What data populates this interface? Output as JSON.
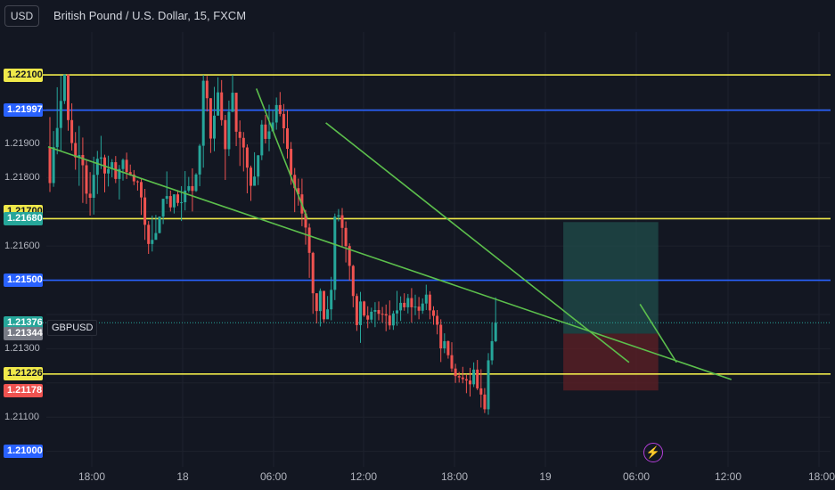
{
  "header": {
    "currency": "USD",
    "title": "British Pound / U.S. Dollar, 15, FXCM"
  },
  "symbol": "GBPUSD",
  "colors": {
    "bg": "#131722",
    "up": "#26a69a",
    "down": "#ef5350",
    "yellow": "#f0e94a",
    "blue": "#2962ff",
    "trend": "#5cbf4c",
    "profit_zone": "#1f4a48",
    "loss_zone": "#5a1f26"
  },
  "icons": {
    "event": "lightning-icon"
  },
  "chart_data": {
    "type": "candlestick",
    "title": "British Pound / U.S. Dollar, 15, FXCM",
    "ylim": [
      1.2096,
      1.2222
    ],
    "y_ticks": [
      "1.21900",
      "1.21800",
      "1.21600",
      "1.21300",
      "1.21100"
    ],
    "x_ticks": [
      "18:00",
      "18",
      "06:00",
      "12:00",
      "18:00",
      "19",
      "06:00",
      "12:00",
      "18:00"
    ],
    "price_tags": [
      {
        "text": "1.22100",
        "value": 1.221,
        "kind": "yellow"
      },
      {
        "text": "1.21997",
        "value": 1.21997,
        "kind": "blue"
      },
      {
        "text": "1.21700",
        "value": 1.217,
        "kind": "yellow"
      },
      {
        "text": "1.21680",
        "value": 1.2168,
        "kind": "green"
      },
      {
        "text": "1.21500",
        "value": 1.215,
        "kind": "blue"
      },
      {
        "text": "1.21376",
        "value": 1.21376,
        "kind": "green"
      },
      {
        "text": "1.21344",
        "value": 1.21344,
        "kind": "gray"
      },
      {
        "text": "1.21226",
        "value": 1.21226,
        "kind": "yellow"
      },
      {
        "text": "1.21178",
        "value": 1.21178,
        "kind": "red"
      },
      {
        "text": "1.21000",
        "value": 1.21,
        "kind": "blue"
      }
    ],
    "horizontal_levels": [
      {
        "value": 1.221,
        "color": "yellow"
      },
      {
        "value": 1.21997,
        "color": "blue"
      },
      {
        "value": 1.2168,
        "color": "yellow"
      },
      {
        "value": 1.215,
        "color": "blue"
      },
      {
        "value": 1.21226,
        "color": "yellow"
      }
    ],
    "current_price": 1.21376,
    "trend_lines": [
      {
        "t0": 0,
        "p0": 1.2189,
        "t1": 187,
        "p1": 1.2121
      },
      {
        "t0": 57,
        "p0": 1.2206,
        "t1": 71,
        "p1": 1.2168
      },
      {
        "t0": 76,
        "p0": 1.2196,
        "t1": 159,
        "p1": 1.2126
      },
      {
        "t0": 162,
        "p0": 1.2143,
        "t1": 172,
        "p1": 1.2126
      }
    ],
    "position": {
      "t0": 141,
      "t1": 167,
      "target": 1.2167,
      "entry": 1.21344,
      "stop": 1.21178
    },
    "candles": [
      [
        1.21887,
        1.21784,
        1.21977,
        1.21758
      ],
      [
        1.21784,
        1.21889,
        1.21936,
        1.21773
      ],
      [
        1.21889,
        1.21945,
        1.22064,
        1.21868
      ],
      [
        1.21945,
        1.22024,
        1.22098,
        1.21878
      ],
      [
        1.22024,
        1.22101,
        1.22101,
        1.22015
      ],
      [
        1.22101,
        1.21968,
        1.22101,
        1.21937
      ],
      [
        1.21968,
        1.21901,
        1.22017,
        1.21879
      ],
      [
        1.21901,
        1.21859,
        1.21933,
        1.21823
      ],
      [
        1.21859,
        1.21866,
        1.21951,
        1.21776
      ],
      [
        1.21866,
        1.21836,
        1.21917,
        1.21726
      ],
      [
        1.21836,
        1.21753,
        1.21853,
        1.21723
      ],
      [
        1.21753,
        1.21741,
        1.21816,
        1.21689
      ],
      [
        1.21741,
        1.21808,
        1.21861,
        1.21692
      ],
      [
        1.21808,
        1.21855,
        1.21878,
        1.21752
      ],
      [
        1.21855,
        1.21859,
        1.21922,
        1.21825
      ],
      [
        1.21859,
        1.21812,
        1.21867,
        1.21757
      ],
      [
        1.21812,
        1.21825,
        1.21864,
        1.21774
      ],
      [
        1.21825,
        1.21845,
        1.21854,
        1.21801
      ],
      [
        1.21845,
        1.21796,
        1.21863,
        1.21784
      ],
      [
        1.21796,
        1.21825,
        1.21837,
        1.21736
      ],
      [
        1.21825,
        1.21852,
        1.21856,
        1.21791
      ],
      [
        1.21852,
        1.21816,
        1.21873,
        1.21796
      ],
      [
        1.21816,
        1.21809,
        1.21838,
        1.21805
      ],
      [
        1.21809,
        1.21789,
        1.21822,
        1.21778
      ],
      [
        1.21789,
        1.21787,
        1.21792,
        1.21762
      ],
      [
        1.21787,
        1.21742,
        1.21797,
        1.21691
      ],
      [
        1.21742,
        1.21662,
        1.21767,
        1.21618
      ],
      [
        1.21662,
        1.21606,
        1.21673,
        1.21577
      ],
      [
        1.21606,
        1.21618,
        1.21689,
        1.21584
      ],
      [
        1.21618,
        1.21638,
        1.21691,
        1.21637
      ],
      [
        1.21638,
        1.21686,
        1.21686,
        1.21637
      ],
      [
        1.21686,
        1.21738,
        1.21738,
        1.21664
      ],
      [
        1.21738,
        1.21746,
        1.21818,
        1.21723
      ],
      [
        1.21746,
        1.21713,
        1.21762,
        1.21701
      ],
      [
        1.21713,
        1.21751,
        1.21751,
        1.21695
      ],
      [
        1.21751,
        1.21726,
        1.21763,
        1.21717
      ],
      [
        1.21726,
        1.21728,
        1.21775,
        1.21673
      ],
      [
        1.21728,
        1.21762,
        1.21819,
        1.21704
      ],
      [
        1.21762,
        1.21775,
        1.21802,
        1.21756
      ],
      [
        1.21775,
        1.21761,
        1.21827,
        1.21701
      ],
      [
        1.21761,
        1.21809,
        1.21813,
        1.21758
      ],
      [
        1.21809,
        1.21893,
        1.21898,
        1.21775
      ],
      [
        1.21893,
        1.22083,
        1.221,
        1.21829
      ],
      [
        1.22083,
        1.22032,
        1.22097,
        1.21993
      ],
      [
        1.22032,
        1.21914,
        1.22032,
        1.21872
      ],
      [
        1.21914,
        1.21981,
        1.22065,
        1.21877
      ],
      [
        1.21981,
        1.22049,
        1.22093,
        1.21982
      ],
      [
        1.22049,
        1.21968,
        1.22085,
        1.21952
      ],
      [
        1.21968,
        1.21883,
        1.21983,
        1.21793
      ],
      [
        1.21883,
        1.21992,
        1.22025,
        1.21863
      ],
      [
        1.21992,
        1.22048,
        1.221,
        1.21993
      ],
      [
        1.22048,
        1.21934,
        1.22048,
        1.21892
      ],
      [
        1.21934,
        1.21916,
        1.21967,
        1.21834
      ],
      [
        1.21916,
        1.21888,
        1.21933,
        1.21818
      ],
      [
        1.21888,
        1.21829,
        1.21897,
        1.21754
      ],
      [
        1.21829,
        1.21776,
        1.21835,
        1.21732
      ],
      [
        1.21776,
        1.21803,
        1.21874,
        1.21788
      ],
      [
        1.21803,
        1.21865,
        1.21866,
        1.21778
      ],
      [
        1.21865,
        1.21955,
        1.21968,
        1.21851
      ],
      [
        1.21955,
        1.21913,
        1.21983,
        1.219
      ],
      [
        1.21913,
        1.21935,
        1.22013,
        1.21877
      ],
      [
        1.21935,
        1.21961,
        1.21997,
        1.21942
      ],
      [
        1.21961,
        1.22012,
        1.22034,
        1.2194
      ],
      [
        1.22012,
        1.21986,
        1.2205,
        1.21979
      ],
      [
        1.21986,
        1.21944,
        1.22015,
        1.219
      ],
      [
        1.21944,
        1.21884,
        1.21996,
        1.21856
      ],
      [
        1.21884,
        1.21808,
        1.21904,
        1.21779
      ],
      [
        1.21808,
        1.21769,
        1.21828,
        1.21699
      ],
      [
        1.21769,
        1.21751,
        1.21797,
        1.21718
      ],
      [
        1.21751,
        1.21695,
        1.21797,
        1.21658
      ],
      [
        1.21695,
        1.21654,
        1.21706,
        1.21604
      ],
      [
        1.21654,
        1.2158,
        1.21666,
        1.21507
      ],
      [
        1.2158,
        1.21462,
        1.21583,
        1.21402
      ],
      [
        1.21462,
        1.2141,
        1.21462,
        1.21374
      ],
      [
        1.2141,
        1.21469,
        1.21476,
        1.21365
      ],
      [
        1.21469,
        1.21386,
        1.21469,
        1.21376
      ],
      [
        1.21386,
        1.21415,
        1.21454,
        1.21389
      ],
      [
        1.21415,
        1.21472,
        1.2151,
        1.21383
      ],
      [
        1.21472,
        1.21686,
        1.21695,
        1.21442
      ],
      [
        1.21686,
        1.2169,
        1.21708,
        1.21672
      ],
      [
        1.2169,
        1.21653,
        1.21711,
        1.21596
      ],
      [
        1.21653,
        1.216,
        1.21672,
        1.21552
      ],
      [
        1.216,
        1.21542,
        1.21608,
        1.21499
      ],
      [
        1.21542,
        1.21454,
        1.21545,
        1.21421
      ],
      [
        1.21454,
        1.21369,
        1.21461,
        1.21352
      ],
      [
        1.21369,
        1.21438,
        1.21466,
        1.21317
      ],
      [
        1.21438,
        1.21397,
        1.2144,
        1.21393
      ],
      [
        1.21397,
        1.21385,
        1.21424,
        1.2136
      ],
      [
        1.21385,
        1.21408,
        1.2142,
        1.21376
      ],
      [
        1.21408,
        1.21413,
        1.21436,
        1.21363
      ],
      [
        1.21413,
        1.21402,
        1.21438,
        1.21383
      ],
      [
        1.21402,
        1.21401,
        1.21422,
        1.21376
      ],
      [
        1.21401,
        1.21397,
        1.21429,
        1.21351
      ],
      [
        1.21397,
        1.21368,
        1.21441,
        1.21356
      ],
      [
        1.21368,
        1.21403,
        1.21411,
        1.21355
      ],
      [
        1.21403,
        1.21412,
        1.21469,
        1.21367
      ],
      [
        1.21412,
        1.21434,
        1.21453,
        1.21381
      ],
      [
        1.21434,
        1.21421,
        1.21462,
        1.21411
      ],
      [
        1.21421,
        1.21448,
        1.2146,
        1.21403
      ],
      [
        1.21448,
        1.21421,
        1.21477,
        1.21376
      ],
      [
        1.21421,
        1.21423,
        1.21458,
        1.21398
      ],
      [
        1.21423,
        1.21411,
        1.21451,
        1.21386
      ],
      [
        1.21411,
        1.21432,
        1.21447,
        1.21402
      ],
      [
        1.21432,
        1.21458,
        1.21487,
        1.21413
      ],
      [
        1.21458,
        1.21412,
        1.21468,
        1.21386
      ],
      [
        1.21412,
        1.21396,
        1.21424,
        1.2137
      ],
      [
        1.21396,
        1.2137,
        1.21413,
        1.21342
      ],
      [
        1.2137,
        1.21301,
        1.21386,
        1.21261
      ],
      [
        1.21301,
        1.21322,
        1.21345,
        1.21287
      ],
      [
        1.21322,
        1.21281,
        1.21324,
        1.21271
      ],
      [
        1.21281,
        1.21242,
        1.21319,
        1.21232
      ],
      [
        1.21242,
        1.2122,
        1.21256,
        1.212
      ],
      [
        1.2122,
        1.21216,
        1.21232,
        1.21201
      ],
      [
        1.21216,
        1.21211,
        1.21247,
        1.21199
      ],
      [
        1.21211,
        1.21207,
        1.21226,
        1.2117
      ],
      [
        1.21207,
        1.21196,
        1.21244,
        1.2116
      ],
      [
        1.21196,
        1.21239,
        1.2126,
        1.21188
      ],
      [
        1.21239,
        1.21184,
        1.21267,
        1.21179
      ],
      [
        1.21184,
        1.21166,
        1.2124,
        1.21128
      ],
      [
        1.21166,
        1.21123,
        1.21185,
        1.21112
      ],
      [
        1.21123,
        1.21266,
        1.21287,
        1.21107
      ],
      [
        1.21266,
        1.21322,
        1.21377,
        1.21253
      ],
      [
        1.21322,
        1.21376,
        1.2145,
        1.21319
      ]
    ]
  }
}
